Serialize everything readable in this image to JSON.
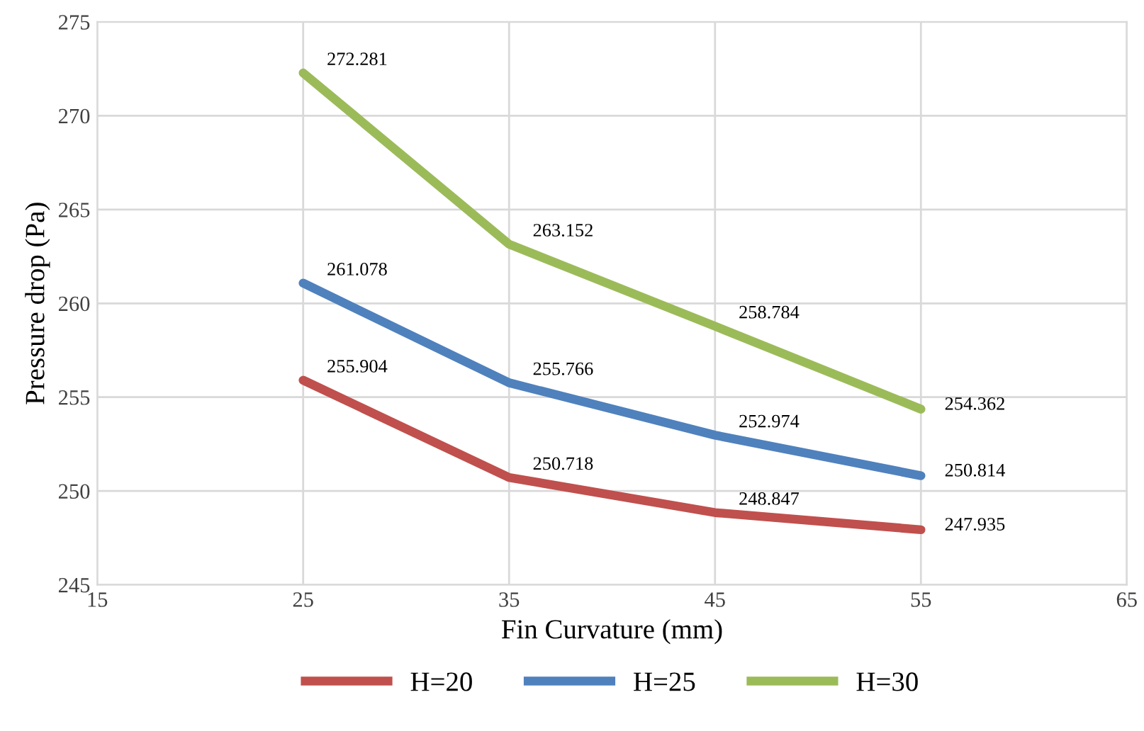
{
  "chart_data": {
    "type": "line",
    "xlabel": "Fin Curvature (mm)",
    "ylabel": "Pressure drop (Pa)",
    "x": [
      25,
      35,
      45,
      55
    ],
    "series": [
      {
        "name": "H=20",
        "color": "#c0504d",
        "values": [
          255.904,
          250.718,
          248.847,
          247.935
        ]
      },
      {
        "name": "H=25",
        "color": "#4f81bd",
        "values": [
          261.078,
          255.766,
          252.974,
          250.814
        ]
      },
      {
        "name": "H=30",
        "color": "#9bbb59",
        "values": [
          272.281,
          263.152,
          258.784,
          254.362
        ]
      }
    ],
    "xlim": [
      15,
      65
    ],
    "xticks": [
      15,
      25,
      35,
      45,
      55,
      65
    ],
    "ylim": [
      245,
      275
    ],
    "yticks": [
      245,
      250,
      255,
      260,
      265,
      270,
      275
    ],
    "grid": true,
    "legend": "bottom",
    "marker": "none",
    "line_style": "solid",
    "data_labels": true
  }
}
